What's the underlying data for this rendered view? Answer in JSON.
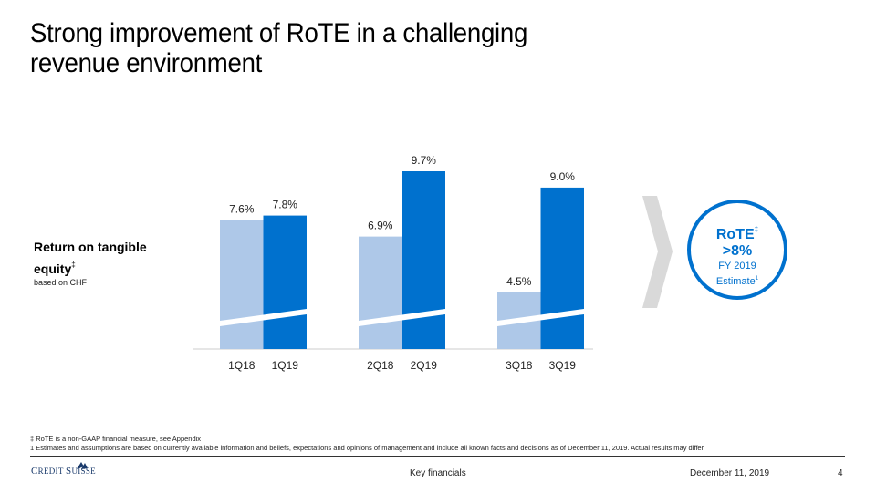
{
  "slide": {
    "title_line1": "Strong improvement of RoTE in a challenging",
    "title_line2": "revenue environment",
    "side_label": {
      "main": "Return on tangible equity",
      "marker": "‡",
      "sub": "based on CHF"
    },
    "callout": {
      "metric": "RoTE",
      "metric_marker": "‡",
      "value": ">8%",
      "period": "FY 2019",
      "note": "Estimate",
      "note_marker": "1",
      "color": "#0071ce"
    },
    "footnotes": [
      "‡ RoTE is a non-GAAP financial measure, see Appendix",
      "1 Estimates and assumptions are based on currently available information and beliefs, expectations and opinions of management and include all known facts and decisions as of December 11, 2019. Actual results may differ"
    ],
    "footer": {
      "brand": "Credit Suisse",
      "section": "Key financials",
      "date": "December 11, 2019",
      "page": "4"
    }
  },
  "chart_data": {
    "type": "bar",
    "title": "Return on tangible equity (based on CHF)",
    "xlabel": "",
    "ylabel": "",
    "axis_break": true,
    "grid": false,
    "groups": [
      {
        "bars": [
          {
            "label": "1Q18",
            "value": 7.6,
            "display": "7.6%",
            "series": "2018"
          },
          {
            "label": "1Q19",
            "value": 7.8,
            "display": "7.8%",
            "series": "2019"
          }
        ]
      },
      {
        "bars": [
          {
            "label": "2Q18",
            "value": 6.9,
            "display": "6.9%",
            "series": "2018"
          },
          {
            "label": "2Q19",
            "value": 9.7,
            "display": "9.7%",
            "series": "2019"
          }
        ]
      },
      {
        "bars": [
          {
            "label": "3Q18",
            "value": 4.5,
            "display": "4.5%",
            "series": "2018"
          },
          {
            "label": "3Q19",
            "value": 9.0,
            "display": "9.0%",
            "series": "2019"
          }
        ]
      }
    ],
    "series_colors": {
      "2018": "#aec8e8",
      "2019": "#0071ce"
    }
  }
}
